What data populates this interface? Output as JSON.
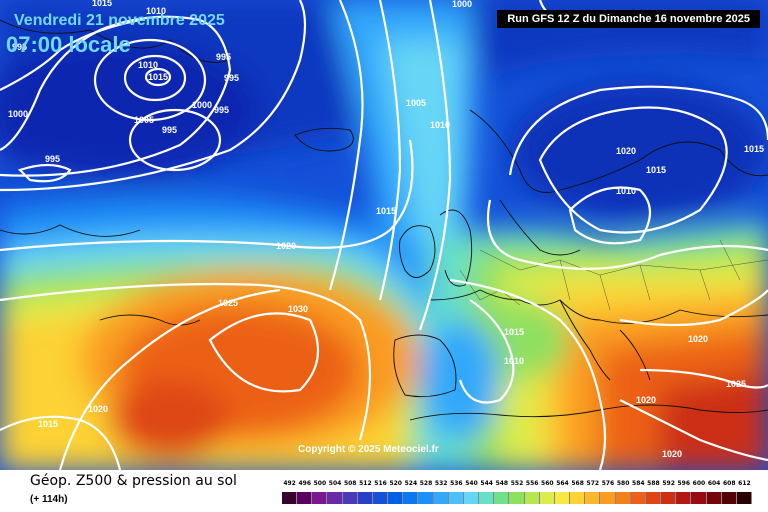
{
  "header": {
    "date_label": "Vendredi 21 novembre 2025",
    "time_label": "07:00 locale",
    "run_label": "Run GFS 12 Z du Dimanche 16 novembre 2025"
  },
  "copyright": "Copyright © 2025 Meteociel.fr",
  "footer": {
    "parameter": "Géop. Z500 & pression au sol",
    "lead_time": "(+ 114h)"
  },
  "legend": {
    "levels": [
      "492",
      "496",
      "500",
      "504",
      "508",
      "512",
      "516",
      "520",
      "524",
      "528",
      "532",
      "536",
      "540",
      "544",
      "548",
      "552",
      "556",
      "560",
      "564",
      "568",
      "572",
      "576",
      "580",
      "584",
      "588",
      "592",
      "596",
      "600",
      "604",
      "608",
      "612"
    ],
    "colors": [
      "#3a0030",
      "#5a0060",
      "#7a1890",
      "#6a2aa8",
      "#4a3aba",
      "#2840c8",
      "#1450d8",
      "#0060e6",
      "#0a78f2",
      "#1c90f8",
      "#33a8fb",
      "#4cc0fc",
      "#66d6f6",
      "#66e0c8",
      "#70e08c",
      "#8ee060",
      "#b6e652",
      "#dcec4c",
      "#f8e840",
      "#fcd234",
      "#fcb828",
      "#fa9c20",
      "#f4801c",
      "#ec6018",
      "#de4618",
      "#cc2e16",
      "#b41812",
      "#960c10",
      "#76040c",
      "#520206",
      "#2a0000"
    ]
  },
  "isobar_labels": [
    {
      "id": "isobar-1015-nw",
      "text": "1015"
    },
    {
      "id": "isobar-1010-n",
      "text": "1010"
    },
    {
      "id": "isobar-1000-top",
      "text": "1000"
    },
    {
      "id": "isobar-995-a",
      "text": "995"
    },
    {
      "id": "isobar-995-b",
      "text": "995"
    },
    {
      "id": "isobar-995-c",
      "text": "995"
    },
    {
      "id": "isobar-1010-low",
      "text": "1010"
    },
    {
      "id": "isobar-1015-low",
      "text": "1015"
    },
    {
      "id": "isobar-1000-w",
      "text": "1000"
    },
    {
      "id": "isobar-1000-c",
      "text": "1000"
    },
    {
      "id": "isobar-995-d",
      "text": "995"
    },
    {
      "id": "isobar-1005-c",
      "text": "1005"
    },
    {
      "id": "isobar-995-e",
      "text": "995"
    },
    {
      "id": "isobar-995-f",
      "text": "995"
    },
    {
      "id": "isobar-1005-n",
      "text": "1005"
    },
    {
      "id": "isobar-1010-atl",
      "text": "1010"
    },
    {
      "id": "isobar-1015-atl",
      "text": "1015"
    },
    {
      "id": "isobar-1020-atl",
      "text": "1020"
    },
    {
      "id": "isobar-1025-w",
      "text": "1025"
    },
    {
      "id": "isobar-1030-az",
      "text": "1030"
    },
    {
      "id": "isobar-1020-sw",
      "text": "1020"
    },
    {
      "id": "isobar-1015-sw",
      "text": "1015"
    },
    {
      "id": "isobar-1020-scan",
      "text": "1020"
    },
    {
      "id": "isobar-1015-scan",
      "text": "1015"
    },
    {
      "id": "isobar-1010-scan",
      "text": "1010"
    },
    {
      "id": "isobar-1015-ne",
      "text": "1015"
    },
    {
      "id": "isobar-1015-med",
      "text": "1015"
    },
    {
      "id": "isobar-1010-med",
      "text": "1010"
    },
    {
      "id": "isobar-1020-ee",
      "text": "1020"
    },
    {
      "id": "isobar-1025-se",
      "text": "1025"
    },
    {
      "id": "isobar-1020-gr",
      "text": "1020"
    },
    {
      "id": "isobar-1020-af",
      "text": "1020"
    }
  ]
}
